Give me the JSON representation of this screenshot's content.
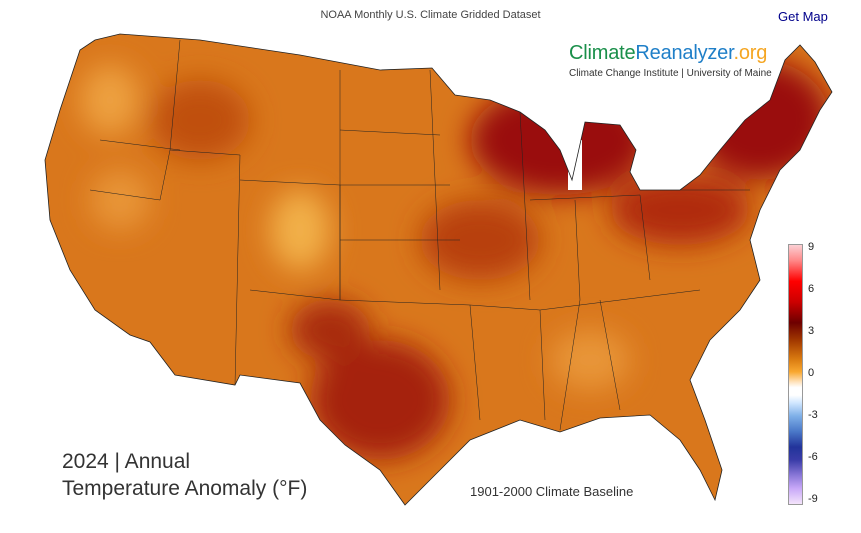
{
  "header": {
    "dataset": "NOAA Monthly U.S. Climate Gridded Dataset",
    "get_map": "Get Map"
  },
  "brand": {
    "climate": "Climate",
    "reanalyzer": "Reanalyzer",
    ".org": ".org",
    "institute": "Climate Change Institute | University of Maine"
  },
  "title": {
    "line1": "2024 | Annual",
    "line2": "Temperature Anomaly (°F)"
  },
  "baseline": "1901-2000 Climate Baseline",
  "legend": {
    "ticks": [
      "9",
      "6",
      "3",
      "0",
      "-3",
      "-6",
      "-9"
    ],
    "unit": "°F",
    "range": [
      -9,
      9
    ]
  },
  "colors": {
    "base": "#d9771c",
    "warm": "#b83a0a",
    "hot": "#9a0a08",
    "light": "#f2b04a"
  }
}
